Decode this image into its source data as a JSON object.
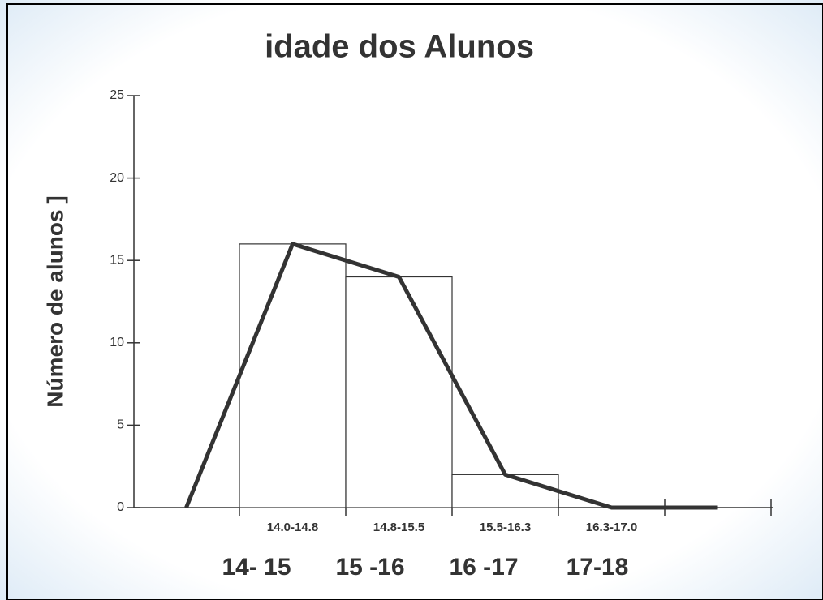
{
  "chart_data": {
    "type": "bar",
    "title": "idade  dos Alunos",
    "ylabel": "Número de alunos ]",
    "categories": [
      "14.0-14.8",
      "14.8-15.5",
      "15.5-16.3",
      "16.3-17.0"
    ],
    "values": [
      16,
      14,
      2,
      0
    ],
    "group_labels": [
      "14- 15",
      "15 -16",
      "16 -17",
      "17-18"
    ],
    "polygon": {
      "values": [
        0,
        16,
        14,
        2,
        0,
        0
      ],
      "color": "#333333"
    },
    "bar_color": "#ffffff",
    "ylim": [
      0,
      25
    ],
    "yticks": [
      0,
      5,
      10,
      15,
      20,
      25
    ]
  }
}
